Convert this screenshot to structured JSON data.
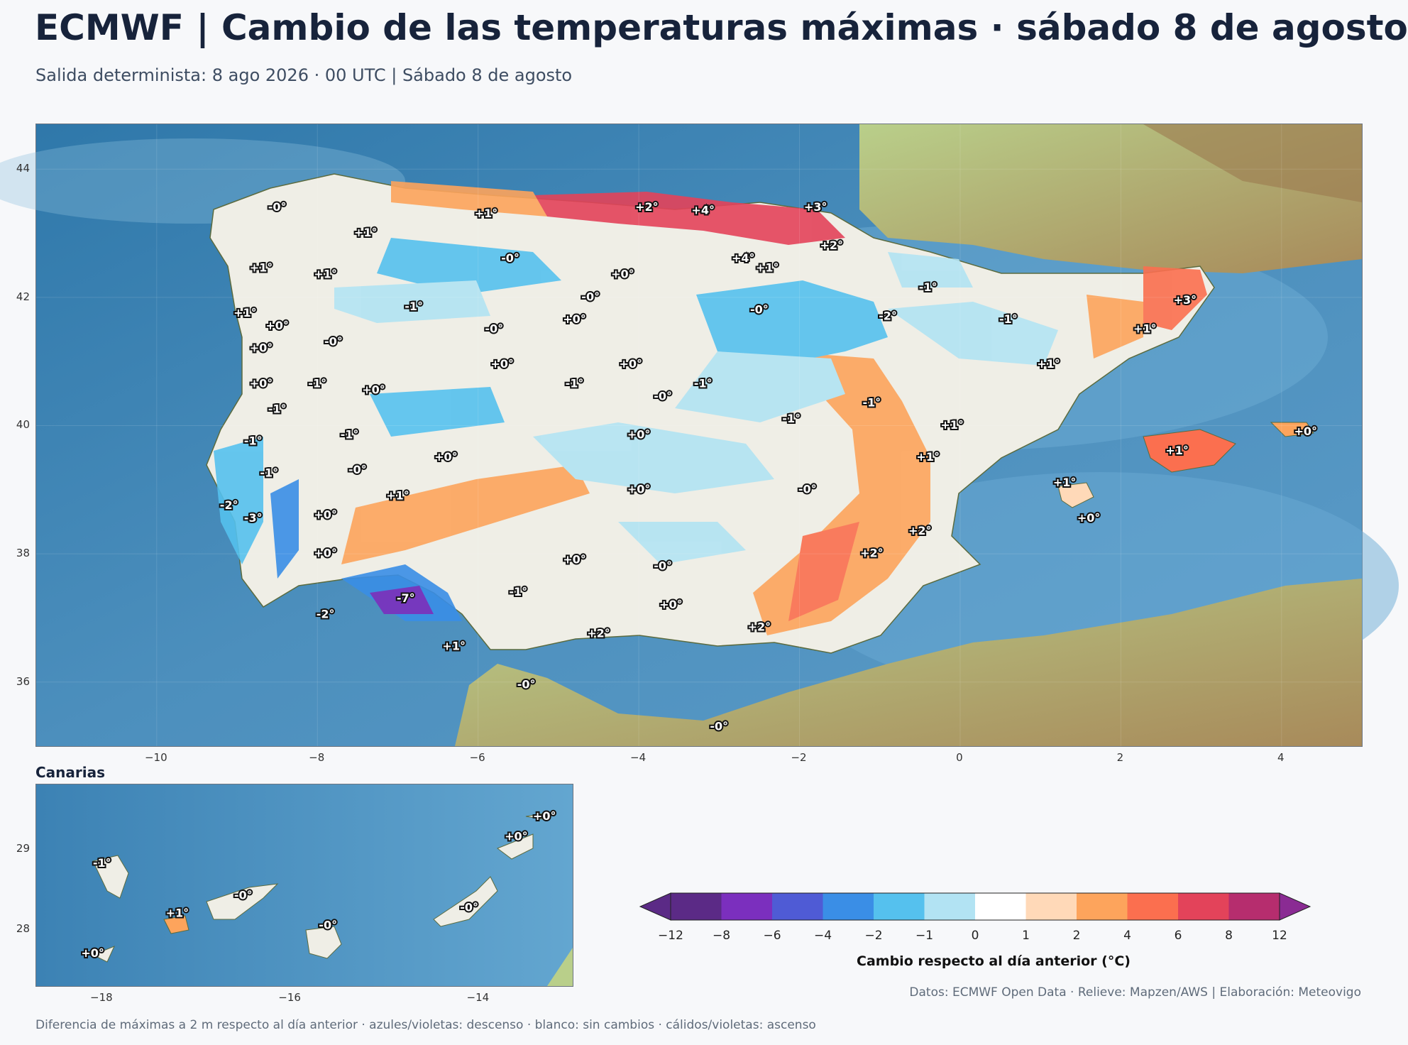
{
  "title": "ECMWF | Cambio de las temperaturas máximas · sábado 8 de agosto",
  "subtitle": "Salida determinista: 8 ago 2026 · 00 UTC  |  Sábado 8 de agosto",
  "main_map": {
    "lon_range": [
      -11.5,
      5.0
    ],
    "lat_range": [
      35.0,
      44.7
    ],
    "x_ticks": [
      "−10",
      "−8",
      "−6",
      "−4",
      "−2",
      "0",
      "2",
      "4"
    ],
    "x_tick_values": [
      -10,
      -8,
      -6,
      -4,
      -2,
      0,
      2,
      4
    ],
    "y_ticks": [
      "44",
      "42",
      "40",
      "38",
      "36"
    ],
    "y_tick_values": [
      44,
      42,
      40,
      38,
      36
    ],
    "labels": [
      {
        "lon": -8.5,
        "lat": 43.4,
        "text": "-0°"
      },
      {
        "lon": -7.4,
        "lat": 43.0,
        "text": "+1°"
      },
      {
        "lon": -5.9,
        "lat": 43.3,
        "text": "+1°"
      },
      {
        "lon": -3.9,
        "lat": 43.4,
        "text": "+2°"
      },
      {
        "lon": -3.2,
        "lat": 43.35,
        "text": "+4°"
      },
      {
        "lon": -1.8,
        "lat": 43.4,
        "text": "+3°"
      },
      {
        "lon": -8.7,
        "lat": 42.45,
        "text": "+1°"
      },
      {
        "lon": -7.9,
        "lat": 42.35,
        "text": "+1°"
      },
      {
        "lon": -5.6,
        "lat": 42.6,
        "text": "-0°"
      },
      {
        "lon": -2.7,
        "lat": 42.6,
        "text": "+4°"
      },
      {
        "lon": -2.4,
        "lat": 42.45,
        "text": "+1°"
      },
      {
        "lon": -1.6,
        "lat": 42.8,
        "text": "+2°"
      },
      {
        "lon": -4.2,
        "lat": 42.35,
        "text": "+0°"
      },
      {
        "lon": -4.6,
        "lat": 42.0,
        "text": "-0°"
      },
      {
        "lon": -0.4,
        "lat": 42.15,
        "text": "-1°"
      },
      {
        "lon": 2.8,
        "lat": 41.95,
        "text": "+3°"
      },
      {
        "lon": -8.9,
        "lat": 41.75,
        "text": "+1°"
      },
      {
        "lon": -8.5,
        "lat": 41.55,
        "text": "+0°"
      },
      {
        "lon": -6.8,
        "lat": 41.85,
        "text": "-1°"
      },
      {
        "lon": -4.8,
        "lat": 41.65,
        "text": "+0°"
      },
      {
        "lon": -5.8,
        "lat": 41.5,
        "text": "-0°"
      },
      {
        "lon": -2.5,
        "lat": 41.8,
        "text": "-0°"
      },
      {
        "lon": -0.9,
        "lat": 41.7,
        "text": "-2°"
      },
      {
        "lon": 0.6,
        "lat": 41.65,
        "text": "-1°"
      },
      {
        "lon": 2.3,
        "lat": 41.5,
        "text": "+1°"
      },
      {
        "lon": -7.8,
        "lat": 41.3,
        "text": "-0°"
      },
      {
        "lon": -8.7,
        "lat": 41.2,
        "text": "+0°"
      },
      {
        "lon": -5.7,
        "lat": 40.95,
        "text": "+0°"
      },
      {
        "lon": -4.1,
        "lat": 40.95,
        "text": "+0°"
      },
      {
        "lon": 1.1,
        "lat": 40.95,
        "text": "+1°"
      },
      {
        "lon": -8.7,
        "lat": 40.65,
        "text": "+0°"
      },
      {
        "lon": -8.0,
        "lat": 40.65,
        "text": "-1°"
      },
      {
        "lon": -7.3,
        "lat": 40.55,
        "text": "+0°"
      },
      {
        "lon": -4.8,
        "lat": 40.65,
        "text": "-1°"
      },
      {
        "lon": -3.2,
        "lat": 40.65,
        "text": "-1°"
      },
      {
        "lon": -3.7,
        "lat": 40.45,
        "text": "-0°"
      },
      {
        "lon": -1.1,
        "lat": 40.35,
        "text": "-1°"
      },
      {
        "lon": -8.5,
        "lat": 40.25,
        "text": "-1°"
      },
      {
        "lon": -2.1,
        "lat": 40.1,
        "text": "-1°"
      },
      {
        "lon": -0.1,
        "lat": 40.0,
        "text": "+1°"
      },
      {
        "lon": -4.0,
        "lat": 39.85,
        "text": "+0°"
      },
      {
        "lon": 4.3,
        "lat": 39.9,
        "text": "+0°"
      },
      {
        "lon": -8.8,
        "lat": 39.75,
        "text": "-1°"
      },
      {
        "lon": -7.6,
        "lat": 39.85,
        "text": "-1°"
      },
      {
        "lon": -6.4,
        "lat": 39.5,
        "text": "+0°"
      },
      {
        "lon": -0.4,
        "lat": 39.5,
        "text": "+1°"
      },
      {
        "lon": 2.7,
        "lat": 39.6,
        "text": "+1°"
      },
      {
        "lon": -7.5,
        "lat": 39.3,
        "text": "-0°"
      },
      {
        "lon": -8.6,
        "lat": 39.25,
        "text": "-1°"
      },
      {
        "lon": 1.3,
        "lat": 39.1,
        "text": "+1°"
      },
      {
        "lon": -1.9,
        "lat": 39.0,
        "text": "-0°"
      },
      {
        "lon": -4.0,
        "lat": 39.0,
        "text": "+0°"
      },
      {
        "lon": -7.0,
        "lat": 38.9,
        "text": "+1°"
      },
      {
        "lon": -9.1,
        "lat": 38.75,
        "text": "-2°"
      },
      {
        "lon": -8.8,
        "lat": 38.55,
        "text": "-3°"
      },
      {
        "lon": -7.9,
        "lat": 38.6,
        "text": "+0°"
      },
      {
        "lon": 1.6,
        "lat": 38.55,
        "text": "+0°"
      },
      {
        "lon": -0.5,
        "lat": 38.35,
        "text": "+2°"
      },
      {
        "lon": -7.9,
        "lat": 38.0,
        "text": "+0°"
      },
      {
        "lon": -1.1,
        "lat": 38.0,
        "text": "+2°"
      },
      {
        "lon": -4.8,
        "lat": 37.9,
        "text": "+0°"
      },
      {
        "lon": -3.7,
        "lat": 37.8,
        "text": "-0°"
      },
      {
        "lon": -5.5,
        "lat": 37.4,
        "text": "-1°"
      },
      {
        "lon": -6.9,
        "lat": 37.3,
        "text": "-7°"
      },
      {
        "lon": -3.6,
        "lat": 37.2,
        "text": "+0°"
      },
      {
        "lon": -7.9,
        "lat": 37.05,
        "text": "-2°"
      },
      {
        "lon": -4.5,
        "lat": 36.75,
        "text": "+2°"
      },
      {
        "lon": -2.5,
        "lat": 36.85,
        "text": "+2°"
      },
      {
        "lon": -6.3,
        "lat": 36.55,
        "text": "+1°"
      },
      {
        "lon": -5.4,
        "lat": 35.95,
        "text": "-0°"
      },
      {
        "lon": -3.0,
        "lat": 35.3,
        "text": "-0°"
      }
    ]
  },
  "inset": {
    "title": "Canarias",
    "lon_range": [
      -18.7,
      -13.0
    ],
    "lat_range": [
      27.3,
      29.8
    ],
    "x_ticks": [
      "−18",
      "−16",
      "−14"
    ],
    "x_tick_values": [
      -18,
      -16,
      -14
    ],
    "y_ticks": [
      "29",
      "28"
    ],
    "y_tick_values": [
      29,
      28
    ],
    "labels": [
      {
        "lon": -18.0,
        "lat": 28.82,
        "text": "-1°"
      },
      {
        "lon": -17.2,
        "lat": 28.2,
        "text": "+1°"
      },
      {
        "lon": -16.5,
        "lat": 28.42,
        "text": "-0°"
      },
      {
        "lon": -15.6,
        "lat": 28.05,
        "text": "-0°"
      },
      {
        "lon": -18.1,
        "lat": 27.7,
        "text": "+0°"
      },
      {
        "lon": -14.1,
        "lat": 28.27,
        "text": "-0°"
      },
      {
        "lon": -13.6,
        "lat": 29.15,
        "text": "+0°"
      },
      {
        "lon": -13.3,
        "lat": 29.4,
        "text": "+0°"
      }
    ]
  },
  "colorbar": {
    "title": "Cambio respecto al día anterior (°C)",
    "bounds": [
      -12,
      -8,
      -6,
      -4,
      -2,
      -1,
      0,
      1,
      2,
      4,
      6,
      8,
      12
    ],
    "tick_labels": [
      "−12",
      "−8",
      "−6",
      "−4",
      "−2",
      "−1",
      "0",
      "1",
      "2",
      "4",
      "6",
      "8",
      "12"
    ],
    "colors": [
      "#5b2a86",
      "#7b2fbe",
      "#4f5bd5",
      "#3a8ee6",
      "#55c1ee",
      "#b2e3f3",
      "#ffffff",
      "#ffd9b8",
      "#fda45c",
      "#fb6f4f",
      "#e3435a",
      "#b62d6e",
      "#8a2b93"
    ],
    "extend_low_color": "#5b2a86",
    "extend_high_color": "#8a2b93"
  },
  "credits": "Datos: ECMWF Open Data · Relieve: Mapzen/AWS  |  Elaboración: Meteovigo",
  "footnote": "Diferencia de máximas a 2 m respecto al día anterior · azules/violetas: descenso · blanco: sin cambios · cálidos/violetas: ascenso"
}
